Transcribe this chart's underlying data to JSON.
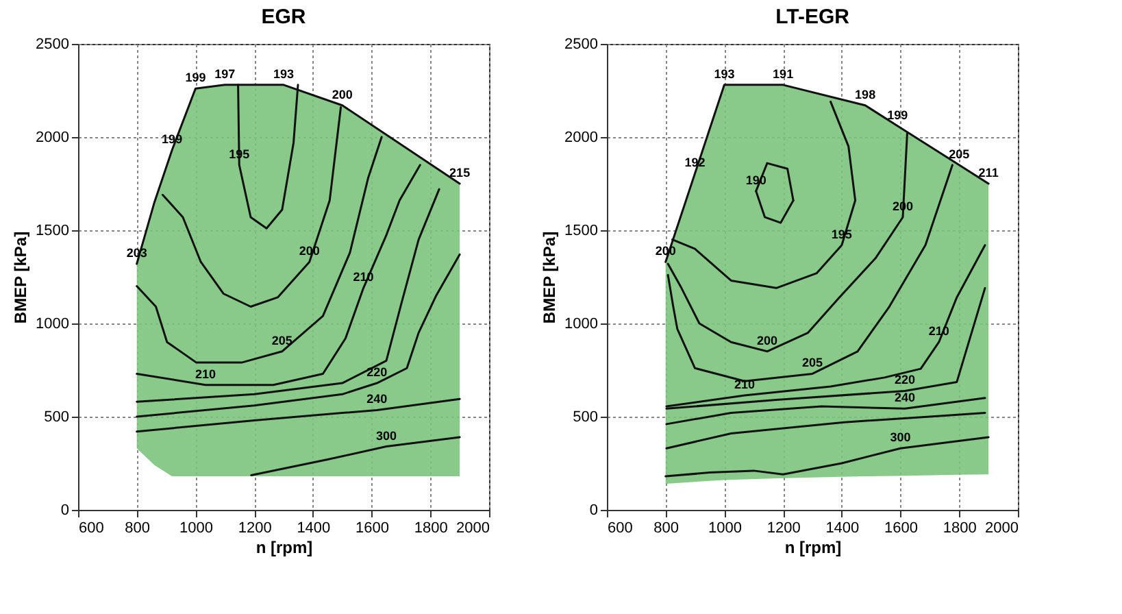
{
  "chart_data": [
    {
      "type": "line",
      "title": "EGR",
      "xlabel": "n  [rpm]",
      "ylabel": "BMEP  [kPa]",
      "xlim": [
        600,
        2000
      ],
      "xticks": [
        600,
        800,
        1000,
        1200,
        1400,
        1600,
        1800,
        2000
      ],
      "ylim": [
        0,
        2500
      ],
      "yticks": [
        0,
        500,
        1000,
        1500,
        2000,
        2500
      ],
      "grid": true,
      "series": [
        {
          "color": "#111111",
          "x": [
            800,
            860,
            920,
            1000,
            1100,
            1300,
            1500,
            1900
          ],
          "values": [
            1320,
            1650,
            1930,
            2260,
            2280,
            2280,
            2170,
            1750
          ],
          "lower": [
            330,
            240,
            180,
            180,
            180,
            180,
            180,
            180
          ],
          "upper": [
            1320,
            1650,
            1930,
            2260,
            2280,
            2280,
            2170,
            1750
          ]
        },
        {
          "color": "#111111",
          "x": [
            1145,
            1149,
            1188,
            1242,
            1295,
            1334,
            1349
          ],
          "values": [
            2280,
            1850,
            1570,
            1510,
            1610,
            1970,
            2280
          ]
        },
        {
          "color": "#111111",
          "x": [
            888,
            957,
            1018,
            1095,
            1188,
            1280,
            1388,
            1457,
            1495
          ],
          "values": [
            1690,
            1570,
            1330,
            1160,
            1090,
            1140,
            1330,
            1660,
            2160
          ]
        },
        {
          "color": "#111111",
          "x": [
            800,
            865,
            903,
            1003,
            1157,
            1295,
            1434,
            1526,
            1588,
            1634
          ],
          "values": [
            1200,
            1090,
            900,
            790,
            790,
            850,
            1040,
            1380,
            1780,
            2000
          ]
        },
        {
          "color": "#111111",
          "x": [
            800,
            1034,
            1265,
            1434,
            1511,
            1572,
            1649,
            1695,
            1765
          ],
          "values": [
            730,
            670,
            670,
            730,
            920,
            1190,
            1470,
            1660,
            1850
          ]
        },
        {
          "color": "#111111",
          "x": [
            800,
            1200,
            1500,
            1650,
            1700,
            1760,
            1830
          ],
          "values": [
            580,
            620,
            680,
            800,
            1100,
            1450,
            1720
          ]
        },
        {
          "color": "#111111",
          "x": [
            800,
            1200,
            1500,
            1618,
            1720,
            1760,
            1820,
            1900
          ],
          "values": [
            500,
            560,
            620,
            680,
            760,
            950,
            1150,
            1370
          ]
        },
        {
          "color": "#111111",
          "x": [
            800,
            1200,
            1500,
            1618,
            1900
          ],
          "values": [
            420,
            480,
            520,
            535,
            595
          ]
        },
        {
          "color": "#111111",
          "x": [
            1190,
            1450,
            1650,
            1900
          ],
          "values": [
            186,
            270,
            340,
            390
          ]
        }
      ],
      "annotations": [
        {
          "text": "199",
          "x": 1000,
          "y": 2260
        },
        {
          "text": "197",
          "x": 1100,
          "y": 2280
        },
        {
          "text": "193",
          "x": 1300,
          "y": 2280
        },
        {
          "text": "200",
          "x": 1500,
          "y": 2170
        },
        {
          "text": "215",
          "x": 1900,
          "y": 1750
        },
        {
          "text": "199",
          "x": 920,
          "y": 1930
        },
        {
          "text": "203",
          "x": 800,
          "y": 1320
        },
        {
          "text": "195",
          "x": 1149,
          "y": 1850
        },
        {
          "text": "200",
          "x": 1388,
          "y": 1330
        },
        {
          "text": "210",
          "x": 1572,
          "y": 1190
        },
        {
          "text": "205",
          "x": 1295,
          "y": 850
        },
        {
          "text": "210",
          "x": 1034,
          "y": 670
        },
        {
          "text": "220",
          "x": 1618,
          "y": 680
        },
        {
          "text": "240",
          "x": 1618,
          "y": 535
        },
        {
          "text": "300",
          "x": 1650,
          "y": 340
        }
      ]
    },
    {
      "type": "line",
      "title": "LT-EGR",
      "xlabel": "n  [rpm]",
      "ylabel": "BMEP  [kPa]",
      "xlim": [
        600,
        2000
      ],
      "xticks": [
        600,
        800,
        1000,
        1200,
        1400,
        1600,
        1800,
        2000
      ],
      "ylim": [
        0,
        2500
      ],
      "yticks": [
        0,
        500,
        1000,
        1500,
        2000,
        2500
      ],
      "grid": true,
      "series": [
        {
          "color": "#111111",
          "x": [
            800,
            900,
            1000,
            1200,
            1480,
            1590,
            1800,
            1900
          ],
          "values": [
            1330,
            1805,
            2280,
            2280,
            2170,
            2060,
            1850,
            1750
          ],
          "lower": [
            140,
            150,
            160,
            170,
            180,
            182,
            188,
            190
          ],
          "upper": [
            1330,
            1805,
            2280,
            2280,
            2170,
            2060,
            1850,
            1750
          ]
        },
        {
          "color": "#111111",
          "x": [
            1108,
            1146,
            1215,
            1235
          ],
          "values": [
            1710,
            1860,
            1830,
            1660
          ]
        },
        {
          "color": "#111111",
          "x": [
            1108,
            1138,
            1192,
            1235
          ],
          "values": [
            1710,
            1570,
            1540,
            1660
          ]
        },
        {
          "color": "#111111",
          "x": [
            1362,
            1423,
            1446,
            1400,
            1315,
            1177,
            1023,
            900,
            823
          ],
          "values": [
            2190,
            1950,
            1660,
            1420,
            1270,
            1190,
            1230,
            1400,
            1450
          ]
        },
        {
          "color": "#111111",
          "x": [
            808,
            854,
            915,
            1023,
            1146,
            1285,
            1392,
            1515,
            1608,
            1623
          ],
          "values": [
            1320,
            1190,
            1000,
            900,
            850,
            950,
            1140,
            1350,
            1570,
            2020
          ]
        },
        {
          "color": "#111111",
          "x": [
            808,
            826,
            840,
            900,
            1069,
            1300,
            1454,
            1562,
            1685,
            1777
          ],
          "values": [
            1260,
            1090,
            970,
            760,
            690,
            730,
            850,
            1090,
            1420,
            1850
          ]
        },
        {
          "color": "#111111",
          "x": [
            803,
            1069,
            1362,
            1546,
            1669,
            1731,
            1792,
            1888
          ],
          "values": [
            555,
            614,
            662,
            710,
            757,
            900,
            1140,
            1420
          ]
        },
        {
          "color": "#111111",
          "x": [
            803,
            1177,
            1615,
            1792,
            1888
          ],
          "values": [
            543,
            590,
            638,
            686,
            1190
          ]
        },
        {
          "color": "#111111",
          "x": [
            803,
            1023,
            1331,
            1615,
            1888
          ],
          "values": [
            460,
            520,
            555,
            543,
            600
          ]
        },
        {
          "color": "#111111",
          "x": [
            803,
            1023,
            1408,
            1700,
            1888
          ],
          "values": [
            330,
            410,
            470,
            500,
            520
          ]
        },
        {
          "color": "#111111",
          "x": [
            800,
            950,
            1100,
            1200,
            1400,
            1600,
            1900
          ],
          "values": [
            180,
            200,
            210,
            190,
            250,
            330,
            390
          ]
        }
      ],
      "annotations": [
        {
          "text": "193",
          "x": 1000,
          "y": 2280
        },
        {
          "text": "191",
          "x": 1200,
          "y": 2280
        },
        {
          "text": "198",
          "x": 1480,
          "y": 2170
        },
        {
          "text": "199",
          "x": 1590,
          "y": 2060
        },
        {
          "text": "205",
          "x": 1800,
          "y": 1850
        },
        {
          "text": "211",
          "x": 1900,
          "y": 1750
        },
        {
          "text": "192",
          "x": 900,
          "y": 1805
        },
        {
          "text": "200",
          "x": 800,
          "y": 1330
        },
        {
          "text": "190",
          "x": 1108,
          "y": 1710
        },
        {
          "text": "195",
          "x": 1400,
          "y": 1420
        },
        {
          "text": "200",
          "x": 1608,
          "y": 1570
        },
        {
          "text": "210",
          "x": 1731,
          "y": 900
        },
        {
          "text": "200",
          "x": 1146,
          "y": 850
        },
        {
          "text": "205",
          "x": 1300,
          "y": 730
        },
        {
          "text": "210",
          "x": 1069,
          "y": 614
        },
        {
          "text": "220",
          "x": 1615,
          "y": 638
        },
        {
          "text": "240",
          "x": 1615,
          "y": 543
        },
        {
          "text": "300",
          "x": 1600,
          "y": 330
        }
      ]
    }
  ]
}
